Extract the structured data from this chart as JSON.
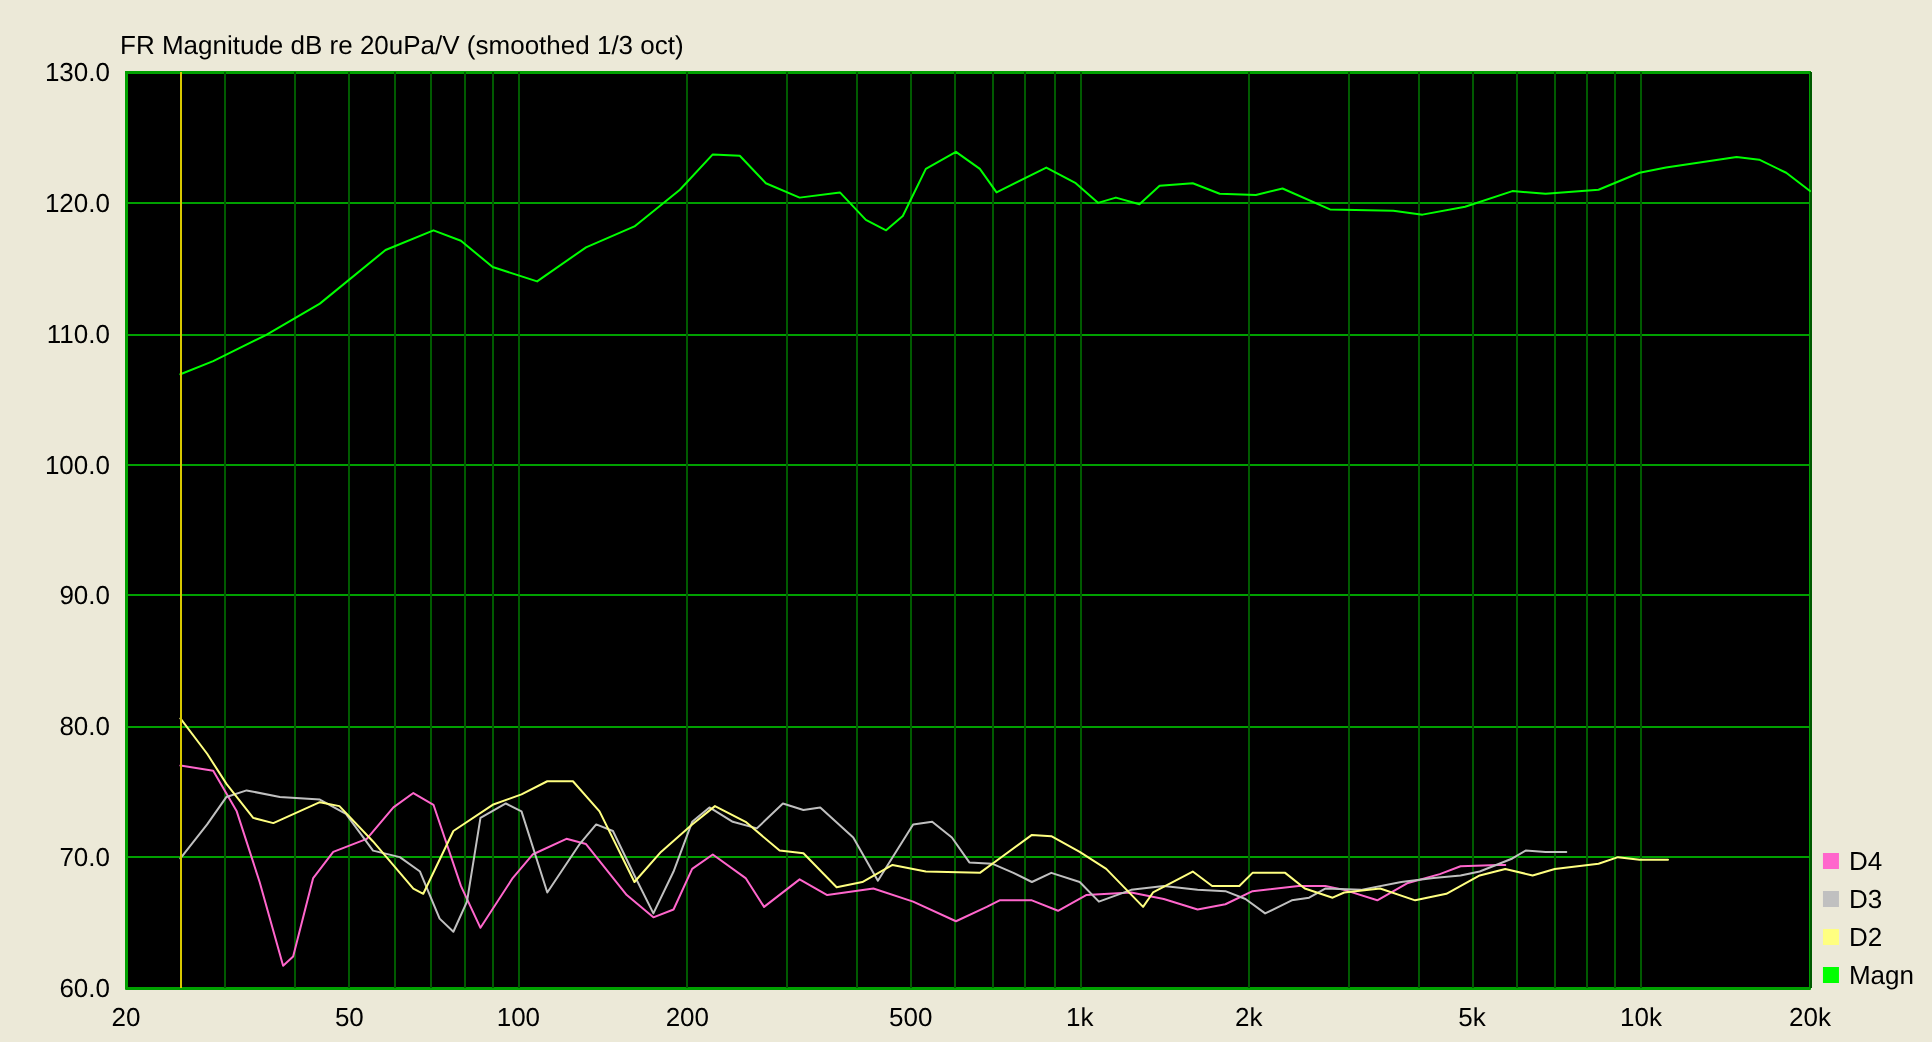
{
  "chart_data": {
    "type": "line",
    "title": "FR Magnitude dB re 20uPa/V (smoothed 1/3 oct)",
    "log": "x",
    "grid": true,
    "legend": "bottom right",
    "marker": "none",
    "line_style": "solid",
    "xlim": [
      20,
      20000
    ],
    "ylim": [
      60,
      130
    ],
    "xticks": [
      {
        "value": 20,
        "label": "20"
      },
      {
        "value": 30,
        "label": null
      },
      {
        "value": 40,
        "label": null
      },
      {
        "value": 50,
        "label": "50"
      },
      {
        "value": 60,
        "label": null
      },
      {
        "value": 70,
        "label": null
      },
      {
        "value": 80,
        "label": null
      },
      {
        "value": 90,
        "label": null
      },
      {
        "value": 100,
        "label": "100"
      },
      {
        "value": 200,
        "label": "200"
      },
      {
        "value": 300,
        "label": null
      },
      {
        "value": 400,
        "label": null
      },
      {
        "value": 500,
        "label": "500"
      },
      {
        "value": 600,
        "label": null
      },
      {
        "value": 700,
        "label": null
      },
      {
        "value": 800,
        "label": null
      },
      {
        "value": 900,
        "label": null
      },
      {
        "value": 1000,
        "label": "1k"
      },
      {
        "value": 2000,
        "label": "2k"
      },
      {
        "value": 3000,
        "label": null
      },
      {
        "value": 4000,
        "label": null
      },
      {
        "value": 5000,
        "label": "5k"
      },
      {
        "value": 6000,
        "label": null
      },
      {
        "value": 7000,
        "label": null
      },
      {
        "value": 8000,
        "label": null
      },
      {
        "value": 9000,
        "label": null
      },
      {
        "value": 10000,
        "label": "10k"
      },
      {
        "value": 20000,
        "label": "20k"
      }
    ],
    "yticks": [
      {
        "value": 60,
        "label": "60.0"
      },
      {
        "value": 70,
        "label": "70.0"
      },
      {
        "value": 80,
        "label": "80.0"
      },
      {
        "value": 90,
        "label": "90.0"
      },
      {
        "value": 100,
        "label": "100.0"
      },
      {
        "value": 110,
        "label": "110.0"
      },
      {
        "value": 120,
        "label": "120.0"
      },
      {
        "value": 130,
        "label": "130.0"
      }
    ],
    "ref_lines": [
      {
        "axis": "x",
        "value": 25,
        "color": "#d8c800"
      }
    ],
    "series": [
      {
        "name": "D4",
        "color": "#ff66cc",
        "x": [
          25,
          28.6,
          31.5,
          34.6,
          38.1,
          39.7,
          43.1,
          46.8,
          53.7,
          59.9,
          65,
          70.6,
          79,
          85.6,
          97.7,
          106,
          121.8,
          132,
          156,
          174,
          189,
          204,
          222,
          254,
          274,
          317,
          355,
          429,
          505,
          602,
          683,
          720,
          822,
          915,
          1027,
          1235,
          1412,
          1622,
          1818,
          2032,
          2454,
          2738,
          2960,
          3390,
          3830,
          4380,
          4770,
          5570,
          5730
        ],
        "values": [
          77.0,
          76.6,
          73.5,
          68.1,
          61.7,
          62.4,
          68.4,
          70.4,
          71.4,
          73.8,
          74.9,
          74.0,
          67.8,
          64.6,
          68.4,
          70.2,
          71.4,
          71.0,
          67.1,
          65.4,
          66.0,
          69.1,
          70.2,
          68.4,
          66.2,
          68.3,
          67.1,
          67.6,
          66.6,
          65.1,
          66.2,
          66.7,
          66.7,
          65.9,
          67.1,
          67.3,
          66.8,
          66.0,
          66.4,
          67.4,
          67.8,
          67.8,
          67.5,
          66.7,
          68.0,
          68.7,
          69.3,
          69.4,
          69.4
        ]
      },
      {
        "name": "D3",
        "color": "#c0c0c0",
        "x": [
          25,
          27.9,
          30.2,
          32.8,
          37.6,
          44.3,
          49.3,
          55.1,
          61.5,
          66.8,
          72.4,
          76.6,
          81,
          85.6,
          95,
          101.3,
          112.6,
          128.6,
          137.6,
          147.4,
          161,
          174,
          189,
          204,
          219,
          241,
          266,
          296,
          322,
          345,
          395,
          437,
          505,
          546,
          592,
          636,
          698,
          762,
          822,
          890,
          1000,
          1082,
          1235,
          1412,
          1622,
          1818,
          1974,
          2140,
          2387,
          2563,
          2738,
          3170,
          3740,
          4270,
          4770,
          5160,
          5900,
          6230,
          6760,
          7360
        ],
        "values": [
          69.9,
          72.5,
          74.6,
          75.1,
          74.6,
          74.4,
          73.3,
          70.5,
          70.0,
          68.9,
          65.3,
          64.3,
          66.6,
          73.0,
          74.1,
          73.5,
          67.3,
          71.0,
          72.5,
          72.0,
          68.6,
          65.7,
          68.9,
          72.7,
          73.8,
          72.7,
          72.2,
          74.1,
          73.6,
          73.8,
          71.5,
          68.2,
          72.5,
          72.7,
          71.5,
          69.6,
          69.5,
          68.8,
          68.1,
          68.8,
          68.1,
          66.6,
          67.5,
          67.8,
          67.5,
          67.4,
          66.8,
          65.7,
          66.7,
          66.9,
          67.6,
          67.5,
          68.1,
          68.4,
          68.6,
          68.9,
          69.9,
          70.5,
          70.4,
          70.4
        ]
      },
      {
        "name": "D2",
        "color": "#ffff80",
        "x": [
          25,
          27.9,
          30.2,
          33.7,
          36.6,
          44.3,
          48,
          55.1,
          65,
          67.7,
          76.6,
          90,
          101.3,
          112.6,
          125.1,
          139.5,
          161,
          179.5,
          204,
          224,
          254,
          292,
          322,
          369,
          410,
          464,
          532,
          664,
          720,
          822,
          890,
          1000,
          1115,
          1297,
          1351,
          1590,
          1722,
          1925,
          2032,
          2323,
          2518,
          2822,
          2960,
          3430,
          3960,
          4500,
          5160,
          5730,
          6410,
          7020,
          8400,
          9100,
          9940,
          11170
        ],
        "values": [
          80.6,
          77.9,
          75.6,
          73.0,
          72.6,
          74.2,
          73.9,
          71.2,
          67.6,
          67.2,
          72.0,
          74.0,
          74.8,
          75.8,
          75.8,
          73.5,
          68.1,
          70.4,
          72.5,
          73.9,
          72.7,
          70.5,
          70.3,
          67.7,
          68.1,
          69.4,
          68.9,
          68.8,
          69.9,
          71.7,
          71.6,
          70.4,
          69.1,
          66.2,
          67.3,
          68.9,
          67.8,
          67.8,
          68.8,
          68.8,
          67.6,
          66.9,
          67.3,
          67.6,
          66.7,
          67.2,
          68.6,
          69.1,
          68.6,
          69.1,
          69.5,
          70.0,
          69.8,
          69.8
        ]
      },
      {
        "name": "Magn",
        "color": "#00ff00",
        "x": [
          25,
          28.6,
          35.5,
          44.3,
          58,
          70.6,
          79,
          90,
          108,
          132,
          161,
          194,
          222,
          248,
          276,
          317,
          374,
          416,
          452,
          484,
          532,
          602,
          664,
          711,
          872,
          984,
          1078,
          1160,
          1278,
          1388,
          1590,
          1776,
          2060,
          2298,
          2792,
          3620,
          4080,
          4860,
          5900,
          6760,
          8400,
          9940,
          11080,
          14800,
          16240,
          18140,
          20000
        ],
        "values": [
          106.9,
          107.9,
          109.9,
          112.3,
          116.4,
          117.9,
          117.1,
          115.1,
          114.0,
          116.6,
          118.2,
          121.0,
          123.7,
          123.6,
          121.5,
          120.4,
          120.8,
          118.7,
          117.9,
          119.0,
          122.6,
          123.9,
          122.6,
          120.8,
          122.7,
          121.5,
          120.0,
          120.4,
          119.9,
          121.3,
          121.5,
          120.7,
          120.6,
          121.1,
          119.5,
          119.4,
          119.1,
          119.7,
          120.9,
          120.7,
          121.0,
          122.3,
          122.7,
          123.5,
          123.3,
          122.3,
          120.9
        ]
      }
    ]
  }
}
